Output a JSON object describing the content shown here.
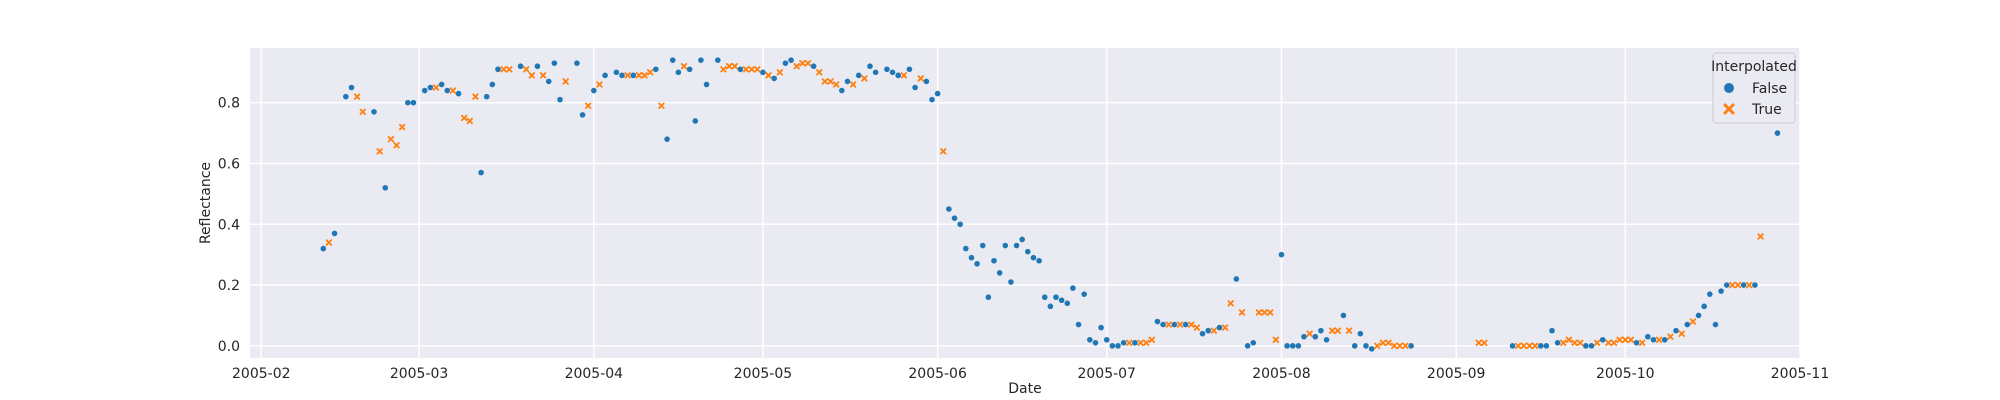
{
  "chart_data": {
    "type": "scatter",
    "xlabel": "Date",
    "ylabel": "Reflectance",
    "x_ticks": [
      "2005-02",
      "2005-03",
      "2005-04",
      "2005-05",
      "2005-06",
      "2005-07",
      "2005-08",
      "2005-09",
      "2005-10",
      "2005-11"
    ],
    "y_ticks": [
      "0.0",
      "0.2",
      "0.4",
      "0.6",
      "0.8"
    ],
    "xlim": [
      "2005-01-30",
      "2005-11-01"
    ],
    "ylim": [
      -0.04,
      0.98
    ],
    "grid": true,
    "legend": {
      "title": "Interpolated",
      "position": "top-right"
    },
    "colors": {
      "False": "#1f77b4",
      "True": "#ff7f0e",
      "background": "#eaeaf2"
    },
    "series": [
      {
        "name": "False",
        "marker": "circle",
        "points": [
          [
            "2005-02-12",
            0.32
          ],
          [
            "2005-02-14",
            0.37
          ],
          [
            "2005-02-16",
            0.82
          ],
          [
            "2005-02-17",
            0.85
          ],
          [
            "2005-02-21",
            0.77
          ],
          [
            "2005-02-23",
            0.52
          ],
          [
            "2005-02-27",
            0.8
          ],
          [
            "2005-02-28",
            0.8
          ],
          [
            "2005-03-02",
            0.84
          ],
          [
            "2005-03-03",
            0.85
          ],
          [
            "2005-03-05",
            0.86
          ],
          [
            "2005-03-06",
            0.84
          ],
          [
            "2005-03-08",
            0.83
          ],
          [
            "2005-03-12",
            0.57
          ],
          [
            "2005-03-13",
            0.82
          ],
          [
            "2005-03-14",
            0.86
          ],
          [
            "2005-03-15",
            0.91
          ],
          [
            "2005-03-19",
            0.92
          ],
          [
            "2005-03-22",
            0.92
          ],
          [
            "2005-03-24",
            0.87
          ],
          [
            "2005-03-25",
            0.93
          ],
          [
            "2005-03-26",
            0.81
          ],
          [
            "2005-03-29",
            0.93
          ],
          [
            "2005-03-30",
            0.76
          ],
          [
            "2005-04-01",
            0.84
          ],
          [
            "2005-04-03",
            0.89
          ],
          [
            "2005-04-05",
            0.9
          ],
          [
            "2005-04-06",
            0.89
          ],
          [
            "2005-04-08",
            0.89
          ],
          [
            "2005-04-12",
            0.91
          ],
          [
            "2005-04-14",
            0.68
          ],
          [
            "2005-04-15",
            0.94
          ],
          [
            "2005-04-16",
            0.9
          ],
          [
            "2005-04-18",
            0.91
          ],
          [
            "2005-04-19",
            0.74
          ],
          [
            "2005-04-20",
            0.94
          ],
          [
            "2005-04-21",
            0.86
          ],
          [
            "2005-04-23",
            0.94
          ],
          [
            "2005-04-27",
            0.91
          ],
          [
            "2005-05-01",
            0.9
          ],
          [
            "2005-05-03",
            0.88
          ],
          [
            "2005-05-05",
            0.93
          ],
          [
            "2005-05-06",
            0.94
          ],
          [
            "2005-05-10",
            0.92
          ],
          [
            "2005-05-15",
            0.84
          ],
          [
            "2005-05-16",
            0.87
          ],
          [
            "2005-05-18",
            0.89
          ],
          [
            "2005-05-20",
            0.92
          ],
          [
            "2005-05-21",
            0.9
          ],
          [
            "2005-05-23",
            0.91
          ],
          [
            "2005-05-24",
            0.9
          ],
          [
            "2005-05-25",
            0.89
          ],
          [
            "2005-05-27",
            0.91
          ],
          [
            "2005-05-28",
            0.85
          ],
          [
            "2005-05-30",
            0.87
          ],
          [
            "2005-05-31",
            0.81
          ],
          [
            "2005-06-01",
            0.83
          ],
          [
            "2005-06-03",
            0.45
          ],
          [
            "2005-06-04",
            0.42
          ],
          [
            "2005-06-05",
            0.4
          ],
          [
            "2005-06-06",
            0.32
          ],
          [
            "2005-06-07",
            0.29
          ],
          [
            "2005-06-08",
            0.27
          ],
          [
            "2005-06-09",
            0.33
          ],
          [
            "2005-06-10",
            0.16
          ],
          [
            "2005-06-11",
            0.28
          ],
          [
            "2005-06-12",
            0.24
          ],
          [
            "2005-06-13",
            0.33
          ],
          [
            "2005-06-14",
            0.21
          ],
          [
            "2005-06-15",
            0.33
          ],
          [
            "2005-06-16",
            0.35
          ],
          [
            "2005-06-17",
            0.31
          ],
          [
            "2005-06-18",
            0.29
          ],
          [
            "2005-06-19",
            0.28
          ],
          [
            "2005-06-20",
            0.16
          ],
          [
            "2005-06-21",
            0.13
          ],
          [
            "2005-06-22",
            0.16
          ],
          [
            "2005-06-23",
            0.15
          ],
          [
            "2005-06-24",
            0.14
          ],
          [
            "2005-06-25",
            0.19
          ],
          [
            "2005-06-26",
            0.07
          ],
          [
            "2005-06-27",
            0.17
          ],
          [
            "2005-06-28",
            0.02
          ],
          [
            "2005-06-29",
            0.01
          ],
          [
            "2005-06-30",
            0.06
          ],
          [
            "2005-07-01",
            0.02
          ],
          [
            "2005-07-02",
            0.0
          ],
          [
            "2005-07-03",
            0.0
          ],
          [
            "2005-07-04",
            0.01
          ],
          [
            "2005-07-06",
            0.01
          ],
          [
            "2005-07-10",
            0.08
          ],
          [
            "2005-07-11",
            0.07
          ],
          [
            "2005-07-13",
            0.07
          ],
          [
            "2005-07-15",
            0.07
          ],
          [
            "2005-07-18",
            0.04
          ],
          [
            "2005-07-19",
            0.05
          ],
          [
            "2005-07-21",
            0.06
          ],
          [
            "2005-07-24",
            0.22
          ],
          [
            "2005-07-26",
            0.0
          ],
          [
            "2005-07-27",
            0.01
          ],
          [
            "2005-08-01",
            0.3
          ],
          [
            "2005-08-02",
            0.0
          ],
          [
            "2005-08-03",
            0.0
          ],
          [
            "2005-08-04",
            0.0
          ],
          [
            "2005-08-05",
            0.03
          ],
          [
            "2005-08-07",
            0.03
          ],
          [
            "2005-08-08",
            0.05
          ],
          [
            "2005-08-09",
            0.02
          ],
          [
            "2005-08-12",
            0.1
          ],
          [
            "2005-08-14",
            0.0
          ],
          [
            "2005-08-15",
            0.04
          ],
          [
            "2005-08-16",
            0.0
          ],
          [
            "2005-08-17",
            -0.01
          ],
          [
            "2005-08-24",
            0.0
          ],
          [
            "2005-09-11",
            0.0
          ],
          [
            "2005-09-16",
            0.0
          ],
          [
            "2005-09-17",
            0.0
          ],
          [
            "2005-09-18",
            0.05
          ],
          [
            "2005-09-19",
            0.01
          ],
          [
            "2005-09-24",
            0.0
          ],
          [
            "2005-09-25",
            0.0
          ],
          [
            "2005-09-27",
            0.02
          ],
          [
            "2005-10-03",
            0.01
          ],
          [
            "2005-10-05",
            0.03
          ],
          [
            "2005-10-06",
            0.02
          ],
          [
            "2005-10-08",
            0.02
          ],
          [
            "2005-10-10",
            0.05
          ],
          [
            "2005-10-12",
            0.07
          ],
          [
            "2005-10-14",
            0.1
          ],
          [
            "2005-10-15",
            0.13
          ],
          [
            "2005-10-16",
            0.17
          ],
          [
            "2005-10-17",
            0.07
          ],
          [
            "2005-10-18",
            0.18
          ],
          [
            "2005-10-19",
            0.2
          ],
          [
            "2005-10-22",
            0.2
          ],
          [
            "2005-10-24",
            0.2
          ],
          [
            "2005-10-28",
            0.7
          ]
        ]
      },
      {
        "name": "True",
        "marker": "x",
        "points": [
          [
            "2005-02-13",
            0.34
          ],
          [
            "2005-02-18",
            0.82
          ],
          [
            "2005-02-19",
            0.77
          ],
          [
            "2005-02-22",
            0.64
          ],
          [
            "2005-02-24",
            0.68
          ],
          [
            "2005-02-25",
            0.66
          ],
          [
            "2005-02-26",
            0.72
          ],
          [
            "2005-03-04",
            0.85
          ],
          [
            "2005-03-07",
            0.84
          ],
          [
            "2005-03-09",
            0.75
          ],
          [
            "2005-03-10",
            0.74
          ],
          [
            "2005-03-11",
            0.82
          ],
          [
            "2005-03-16",
            0.91
          ],
          [
            "2005-03-17",
            0.91
          ],
          [
            "2005-03-20",
            0.91
          ],
          [
            "2005-03-21",
            0.89
          ],
          [
            "2005-03-23",
            0.89
          ],
          [
            "2005-03-27",
            0.87
          ],
          [
            "2005-03-31",
            0.79
          ],
          [
            "2005-04-02",
            0.86
          ],
          [
            "2005-04-07",
            0.89
          ],
          [
            "2005-04-09",
            0.89
          ],
          [
            "2005-04-10",
            0.89
          ],
          [
            "2005-04-11",
            0.9
          ],
          [
            "2005-04-13",
            0.79
          ],
          [
            "2005-04-17",
            0.92
          ],
          [
            "2005-04-24",
            0.91
          ],
          [
            "2005-04-25",
            0.92
          ],
          [
            "2005-04-26",
            0.92
          ],
          [
            "2005-04-28",
            0.91
          ],
          [
            "2005-04-29",
            0.91
          ],
          [
            "2005-04-30",
            0.91
          ],
          [
            "2005-05-02",
            0.89
          ],
          [
            "2005-05-04",
            0.9
          ],
          [
            "2005-05-07",
            0.92
          ],
          [
            "2005-05-08",
            0.93
          ],
          [
            "2005-05-09",
            0.93
          ],
          [
            "2005-05-11",
            0.9
          ],
          [
            "2005-05-12",
            0.87
          ],
          [
            "2005-05-13",
            0.87
          ],
          [
            "2005-05-14",
            0.86
          ],
          [
            "2005-05-17",
            0.86
          ],
          [
            "2005-05-19",
            0.88
          ],
          [
            "2005-05-26",
            0.89
          ],
          [
            "2005-05-29",
            0.88
          ],
          [
            "2005-06-02",
            0.64
          ],
          [
            "2005-07-05",
            0.01
          ],
          [
            "2005-07-07",
            0.01
          ],
          [
            "2005-07-08",
            0.01
          ],
          [
            "2005-07-09",
            0.02
          ],
          [
            "2005-07-12",
            0.07
          ],
          [
            "2005-07-14",
            0.07
          ],
          [
            "2005-07-16",
            0.07
          ],
          [
            "2005-07-17",
            0.06
          ],
          [
            "2005-07-20",
            0.05
          ],
          [
            "2005-07-22",
            0.06
          ],
          [
            "2005-07-23",
            0.14
          ],
          [
            "2005-07-25",
            0.11
          ],
          [
            "2005-07-28",
            0.11
          ],
          [
            "2005-07-29",
            0.11
          ],
          [
            "2005-07-30",
            0.11
          ],
          [
            "2005-07-31",
            0.02
          ],
          [
            "2005-08-06",
            0.04
          ],
          [
            "2005-08-10",
            0.05
          ],
          [
            "2005-08-11",
            0.05
          ],
          [
            "2005-08-13",
            0.05
          ],
          [
            "2005-08-18",
            0.0
          ],
          [
            "2005-08-19",
            0.01
          ],
          [
            "2005-08-20",
            0.01
          ],
          [
            "2005-08-21",
            0.0
          ],
          [
            "2005-08-22",
            0.0
          ],
          [
            "2005-08-23",
            0.0
          ],
          [
            "2005-09-05",
            0.01
          ],
          [
            "2005-09-06",
            0.01
          ],
          [
            "2005-09-12",
            0.0
          ],
          [
            "2005-09-13",
            0.0
          ],
          [
            "2005-09-14",
            0.0
          ],
          [
            "2005-09-15",
            0.0
          ],
          [
            "2005-09-20",
            0.01
          ],
          [
            "2005-09-21",
            0.02
          ],
          [
            "2005-09-22",
            0.01
          ],
          [
            "2005-09-23",
            0.01
          ],
          [
            "2005-09-26",
            0.01
          ],
          [
            "2005-09-28",
            0.01
          ],
          [
            "2005-09-29",
            0.01
          ],
          [
            "2005-09-30",
            0.02
          ],
          [
            "2005-10-01",
            0.02
          ],
          [
            "2005-10-02",
            0.02
          ],
          [
            "2005-10-04",
            0.01
          ],
          [
            "2005-10-07",
            0.02
          ],
          [
            "2005-10-09",
            0.03
          ],
          [
            "2005-10-11",
            0.04
          ],
          [
            "2005-10-13",
            0.08
          ],
          [
            "2005-10-20",
            0.2
          ],
          [
            "2005-10-21",
            0.2
          ],
          [
            "2005-10-23",
            0.2
          ],
          [
            "2005-10-25",
            0.36
          ]
        ]
      }
    ]
  }
}
